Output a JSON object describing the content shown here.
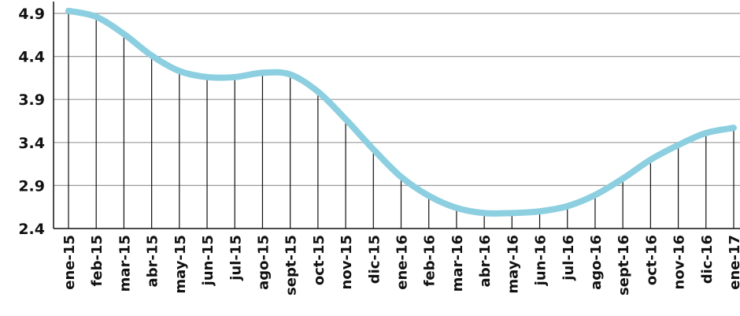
{
  "chart_data": {
    "type": "line",
    "title": "",
    "xlabel": "",
    "ylabel": "",
    "categories": [
      "ene-15",
      "feb-15",
      "mar-15",
      "abr-15",
      "may-15",
      "jun-15",
      "jul-15",
      "ago-15",
      "sept-15",
      "oct-15",
      "nov-15",
      "dic-15",
      "ene-16",
      "feb-16",
      "mar-16",
      "abr-16",
      "may-16",
      "jun-16",
      "jul-16",
      "ago-16",
      "sept-16",
      "oct-16",
      "nov-16",
      "dic-16",
      "ene-17"
    ],
    "series": [
      {
        "name": "",
        "values": [
          4.93,
          4.86,
          4.66,
          4.41,
          4.23,
          4.16,
          4.16,
          4.21,
          4.19,
          3.99,
          3.67,
          3.32,
          3.0,
          2.78,
          2.64,
          2.58,
          2.58,
          2.6,
          2.66,
          2.79,
          2.98,
          3.2,
          3.37,
          3.51,
          3.57
        ]
      }
    ],
    "y_ticks": [
      "4.9",
      "4.4",
      "3.9",
      "3.4",
      "2.9",
      "2.4"
    ],
    "ylim": [
      2.4,
      4.95
    ],
    "grid": true,
    "drop_lines": true,
    "colors": {
      "line": "#8ccfe0",
      "grid": "#9a9a9a",
      "drop_line": "#111111",
      "axis": "#111111",
      "text": "#111111"
    }
  }
}
